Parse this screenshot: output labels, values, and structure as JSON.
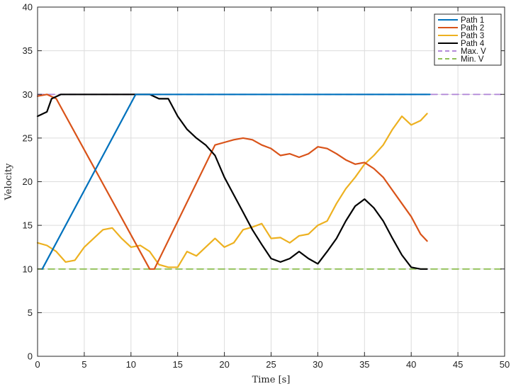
{
  "chart_data": {
    "type": "line",
    "xlabel": "Time [s]",
    "ylabel": "Velocity",
    "xlim": [
      0,
      50
    ],
    "ylim": [
      0,
      40
    ],
    "xticks": [
      0,
      5,
      10,
      15,
      20,
      25,
      30,
      35,
      40,
      45,
      50
    ],
    "yticks": [
      0,
      5,
      10,
      15,
      20,
      25,
      30,
      35,
      40
    ],
    "grid": true,
    "legend_position": "top-right",
    "series": [
      {
        "name": "Path 1",
        "color": "#0072BD",
        "style": "solid",
        "x": [
          0.5,
          10.5,
          11,
          42
        ],
        "y": [
          10,
          30,
          30,
          30
        ]
      },
      {
        "name": "Path 2",
        "color": "#D95319",
        "style": "solid",
        "x": [
          0,
          1,
          2,
          12,
          12.5,
          19,
          20,
          21,
          22,
          23,
          24,
          25,
          26,
          27,
          28,
          29,
          30,
          31,
          32,
          33,
          34,
          35,
          36,
          37,
          38,
          39,
          40,
          41,
          41.7
        ],
        "y": [
          29.8,
          30,
          29.5,
          10,
          10,
          24.2,
          24.5,
          24.8,
          25,
          24.8,
          24.2,
          23.8,
          23,
          23.2,
          22.8,
          23.2,
          24,
          23.8,
          23.2,
          22.5,
          22,
          22.2,
          21.5,
          20.5,
          19,
          17.5,
          16,
          14,
          13.2
        ]
      },
      {
        "name": "Path 3",
        "color": "#EDB120",
        "style": "solid",
        "x": [
          0,
          1,
          2,
          3,
          4,
          5,
          6,
          7,
          8,
          9,
          10,
          11,
          12,
          13,
          14,
          15,
          16,
          17,
          18,
          19,
          20,
          21,
          22,
          23,
          24,
          25,
          26,
          27,
          28,
          29,
          30,
          31,
          32,
          33,
          34,
          35,
          36,
          37,
          38,
          39,
          40,
          41,
          41.7
        ],
        "y": [
          13,
          12.7,
          12,
          10.8,
          11,
          12.5,
          13.5,
          14.5,
          14.7,
          13.5,
          12.5,
          12.7,
          12,
          10.5,
          10.2,
          10.2,
          12,
          11.5,
          12.5,
          13.5,
          12.5,
          13,
          14.5,
          14.8,
          15.2,
          13.5,
          13.6,
          13,
          13.8,
          14,
          15,
          15.5,
          17.5,
          19.2,
          20.5,
          22,
          23,
          24.2,
          26,
          27.5,
          26.5,
          27,
          27.8
        ]
      },
      {
        "name": "Path 4",
        "color": "#000000",
        "style": "solid",
        "x": [
          0,
          1,
          1.5,
          2.5,
          10.5,
          12,
          13,
          14,
          15,
          16,
          17,
          18,
          19,
          20,
          21,
          22,
          23,
          24,
          25,
          26,
          27,
          28,
          29,
          30,
          31,
          32,
          33,
          34,
          35,
          36,
          37,
          38,
          39,
          40,
          41,
          41.7
        ],
        "y": [
          27.5,
          28,
          29.5,
          30,
          30,
          30,
          29.5,
          29.5,
          27.5,
          26,
          25,
          24.2,
          23,
          20.5,
          18.5,
          16.5,
          14.5,
          12.8,
          11.2,
          10.8,
          11.2,
          12,
          11.2,
          10.6,
          12,
          13.5,
          15.5,
          17.2,
          18,
          17,
          15.5,
          13.5,
          11.6,
          10.2,
          10,
          10
        ]
      },
      {
        "name": "Max. V",
        "color": "#B38AD8",
        "style": "dashed",
        "x": [
          0,
          50
        ],
        "y": [
          30,
          30
        ]
      },
      {
        "name": "Min. V",
        "color": "#8FBF55",
        "style": "dashed",
        "x": [
          0,
          50
        ],
        "y": [
          10,
          10
        ]
      }
    ]
  }
}
